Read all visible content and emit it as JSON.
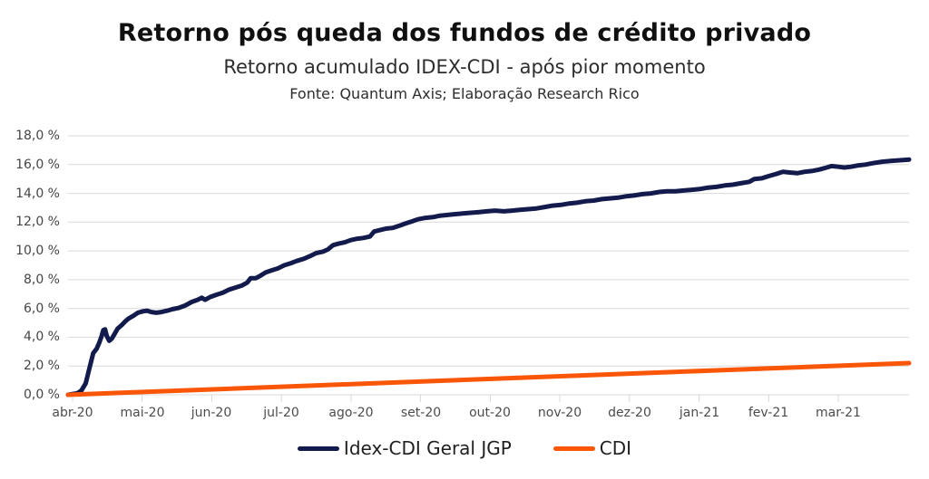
{
  "header": {
    "title": "Retorno pós queda dos fundos de crédito privado",
    "subtitle": "Retorno acumulado IDEX-CDI - após pior momento",
    "source": "Fonte: Quantum Axis; Elaboração Research Rico"
  },
  "colors": {
    "idex_line": "#131b4d",
    "cdi_line": "#f95608",
    "gridline": "#d9d9d9",
    "axis_text": "#454545",
    "title_text": "#101010"
  },
  "chart_data": {
    "type": "line",
    "title": "Retorno pós queda dos fundos de crédito privado",
    "subtitle": "Retorno acumulado IDEX-CDI - após pior momento",
    "source": "Fonte: Quantum Axis; Elaboração Research Rico",
    "xlabel": "",
    "ylabel": "",
    "ylim": [
      0,
      18
    ],
    "ytick_step": 2,
    "ytick_labels": [
      "0,0 %",
      "2,0 %",
      "4,0 %",
      "6,0 %",
      "8,0 %",
      "10,0 %",
      "12,0 %",
      "14,0 %",
      "16,0 %",
      "18,0 %"
    ],
    "x_tick_labels": [
      "abr-20",
      "mai-20",
      "jun-20",
      "jul-20",
      "ago-20",
      "set-20",
      "out-20",
      "nov-20",
      "dez-20",
      "jan-21",
      "fev-21",
      "mar-21"
    ],
    "grid": "horizontal",
    "grid_color": "#d9d9d9",
    "legend_position": "bottom",
    "series": [
      {
        "id": "idex-cdi-geral-jgp",
        "name": "Idex-CDI Geral JGP",
        "color": "#131b4d",
        "width": 5,
        "points": [
          [
            0.0,
            0.0
          ],
          [
            0.005,
            0.05
          ],
          [
            0.011,
            0.1
          ],
          [
            0.016,
            0.3
          ],
          [
            0.021,
            0.8
          ],
          [
            0.024,
            1.5
          ],
          [
            0.027,
            2.2
          ],
          [
            0.03,
            2.9
          ],
          [
            0.034,
            3.2
          ],
          [
            0.037,
            3.6
          ],
          [
            0.04,
            4.1
          ],
          [
            0.042,
            4.5
          ],
          [
            0.044,
            4.55
          ],
          [
            0.046,
            4.1
          ],
          [
            0.049,
            3.75
          ],
          [
            0.052,
            3.9
          ],
          [
            0.055,
            4.2
          ],
          [
            0.059,
            4.6
          ],
          [
            0.064,
            4.85
          ],
          [
            0.068,
            5.1
          ],
          [
            0.072,
            5.3
          ],
          [
            0.078,
            5.5
          ],
          [
            0.083,
            5.7
          ],
          [
            0.089,
            5.8
          ],
          [
            0.094,
            5.85
          ],
          [
            0.099,
            5.75
          ],
          [
            0.105,
            5.7
          ],
          [
            0.111,
            5.75
          ],
          [
            0.118,
            5.85
          ],
          [
            0.124,
            5.95
          ],
          [
            0.132,
            6.05
          ],
          [
            0.139,
            6.2
          ],
          [
            0.147,
            6.45
          ],
          [
            0.154,
            6.6
          ],
          [
            0.159,
            6.75
          ],
          [
            0.163,
            6.6
          ],
          [
            0.169,
            6.8
          ],
          [
            0.176,
            6.95
          ],
          [
            0.184,
            7.1
          ],
          [
            0.191,
            7.3
          ],
          [
            0.199,
            7.45
          ],
          [
            0.207,
            7.6
          ],
          [
            0.213,
            7.8
          ],
          [
            0.217,
            8.1
          ],
          [
            0.223,
            8.1
          ],
          [
            0.228,
            8.25
          ],
          [
            0.235,
            8.5
          ],
          [
            0.242,
            8.65
          ],
          [
            0.25,
            8.8
          ],
          [
            0.257,
            9.0
          ],
          [
            0.265,
            9.15
          ],
          [
            0.272,
            9.3
          ],
          [
            0.28,
            9.45
          ],
          [
            0.288,
            9.65
          ],
          [
            0.295,
            9.85
          ],
          [
            0.303,
            9.95
          ],
          [
            0.309,
            10.1
          ],
          [
            0.315,
            10.4
          ],
          [
            0.321,
            10.5
          ],
          [
            0.329,
            10.6
          ],
          [
            0.336,
            10.75
          ],
          [
            0.344,
            10.85
          ],
          [
            0.351,
            10.9
          ],
          [
            0.359,
            11.0
          ],
          [
            0.364,
            11.35
          ],
          [
            0.371,
            11.45
          ],
          [
            0.378,
            11.55
          ],
          [
            0.386,
            11.6
          ],
          [
            0.394,
            11.75
          ],
          [
            0.401,
            11.9
          ],
          [
            0.409,
            12.05
          ],
          [
            0.416,
            12.2
          ],
          [
            0.425,
            12.3
          ],
          [
            0.434,
            12.35
          ],
          [
            0.442,
            12.45
          ],
          [
            0.451,
            12.5
          ],
          [
            0.459,
            12.55
          ],
          [
            0.469,
            12.6
          ],
          [
            0.479,
            12.65
          ],
          [
            0.489,
            12.7
          ],
          [
            0.498,
            12.75
          ],
          [
            0.508,
            12.8
          ],
          [
            0.518,
            12.75
          ],
          [
            0.528,
            12.8
          ],
          [
            0.537,
            12.85
          ],
          [
            0.547,
            12.9
          ],
          [
            0.557,
            12.95
          ],
          [
            0.567,
            13.05
          ],
          [
            0.576,
            13.15
          ],
          [
            0.586,
            13.2
          ],
          [
            0.596,
            13.3
          ],
          [
            0.605,
            13.35
          ],
          [
            0.615,
            13.45
          ],
          [
            0.625,
            13.5
          ],
          [
            0.635,
            13.6
          ],
          [
            0.644,
            13.65
          ],
          [
            0.654,
            13.7
          ],
          [
            0.664,
            13.8
          ],
          [
            0.673,
            13.85
          ],
          [
            0.683,
            13.95
          ],
          [
            0.693,
            14.0
          ],
          [
            0.703,
            14.1
          ],
          [
            0.712,
            14.15
          ],
          [
            0.722,
            14.15
          ],
          [
            0.732,
            14.2
          ],
          [
            0.742,
            14.25
          ],
          [
            0.751,
            14.3
          ],
          [
            0.761,
            14.4
          ],
          [
            0.771,
            14.45
          ],
          [
            0.781,
            14.55
          ],
          [
            0.79,
            14.6
          ],
          [
            0.8,
            14.7
          ],
          [
            0.81,
            14.8
          ],
          [
            0.816,
            15.0
          ],
          [
            0.825,
            15.05
          ],
          [
            0.833,
            15.2
          ],
          [
            0.842,
            15.35
          ],
          [
            0.85,
            15.5
          ],
          [
            0.858,
            15.45
          ],
          [
            0.867,
            15.4
          ],
          [
            0.876,
            15.5
          ],
          [
            0.884,
            15.55
          ],
          [
            0.893,
            15.65
          ],
          [
            0.902,
            15.8
          ],
          [
            0.908,
            15.9
          ],
          [
            0.916,
            15.85
          ],
          [
            0.923,
            15.8
          ],
          [
            0.931,
            15.85
          ],
          [
            0.94,
            15.95
          ],
          [
            0.948,
            16.0
          ],
          [
            0.957,
            16.1
          ],
          [
            0.968,
            16.2
          ],
          [
            0.978,
            16.25
          ],
          [
            0.989,
            16.3
          ],
          [
            1.0,
            16.35
          ]
        ]
      },
      {
        "id": "cdi",
        "name": "CDI",
        "color": "#f95608",
        "width": 5,
        "points": [
          [
            0.0,
            0.0
          ],
          [
            0.1,
            0.22
          ],
          [
            0.2,
            0.44
          ],
          [
            0.3,
            0.66
          ],
          [
            0.4,
            0.88
          ],
          [
            0.5,
            1.1
          ],
          [
            0.6,
            1.32
          ],
          [
            0.7,
            1.54
          ],
          [
            0.8,
            1.76
          ],
          [
            0.9,
            1.98
          ],
          [
            1.0,
            2.2
          ]
        ]
      }
    ]
  }
}
